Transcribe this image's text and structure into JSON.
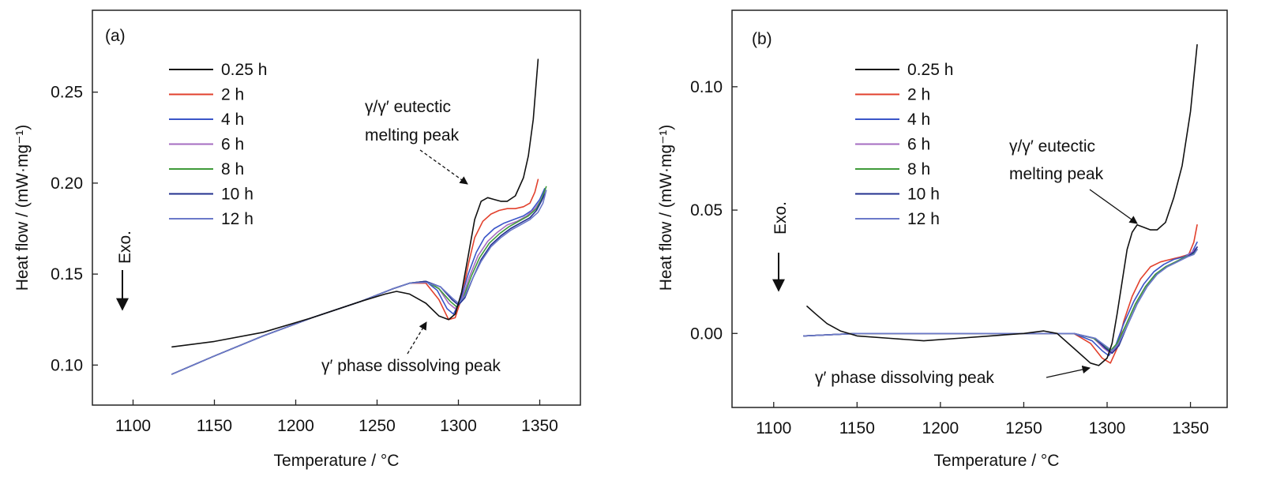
{
  "legend_entries": [
    "0.25 h",
    "2 h",
    "4 h",
    "6 h",
    "8 h",
    "10 h",
    "12 h"
  ],
  "colors": {
    "0.25 h": "#111111",
    "2 h": "#e2412d",
    "4 h": "#3a55c8",
    "6 h": "#a56cc1",
    "8 h": "#3f9a3a",
    "10 h": "#23308f",
    "12 h": "#6b79c9"
  },
  "chart_data": [
    {
      "type": "line",
      "panel_label": "(a)",
      "xlabel": "Temperature / °C",
      "ylabel": "Heat flow / (mW·mg⁻¹)",
      "xlim": [
        1075,
        1375
      ],
      "ylim": [
        0.078,
        0.295
      ],
      "xticks": [
        1100,
        1150,
        1200,
        1250,
        1300,
        1350
      ],
      "xtick_labels": [
        "1100",
        "1150",
        "1200",
        "1250",
        "1300",
        "1350"
      ],
      "yticks": [
        0.1,
        0.15,
        0.2,
        0.25
      ],
      "ytick_labels": [
        "0.10",
        "0.15",
        "0.20",
        "0.25"
      ],
      "legend_position": "upper-left",
      "exo_label": "Exo.",
      "annotations": [
        {
          "lines": [
            "γ/γ′ eutectic",
            "melting peak"
          ],
          "x": 1318,
          "y": 0.191
        },
        {
          "lines": [
            "γ′ phase dissolving peak"
          ],
          "x": 1294,
          "y": 0.126
        }
      ],
      "series": [
        {
          "name": "0.25 h",
          "x": [
            1124,
            1150,
            1180,
            1210,
            1240,
            1255,
            1262,
            1270,
            1280,
            1288,
            1294,
            1298,
            1302,
            1306,
            1310,
            1314,
            1318,
            1322,
            1326,
            1330,
            1335,
            1340,
            1343,
            1346,
            1349
          ],
          "y": [
            0.11,
            0.113,
            0.118,
            0.126,
            0.135,
            0.139,
            0.1405,
            0.139,
            0.134,
            0.127,
            0.125,
            0.128,
            0.14,
            0.16,
            0.18,
            0.19,
            0.192,
            0.191,
            0.19,
            0.19,
            0.193,
            0.203,
            0.215,
            0.235,
            0.268
          ]
        },
        {
          "name": "2 h",
          "x": [
            1124,
            1150,
            1180,
            1210,
            1240,
            1260,
            1270,
            1280,
            1288,
            1294,
            1298,
            1302,
            1306,
            1310,
            1315,
            1320,
            1325,
            1330,
            1335,
            1340,
            1344,
            1347,
            1349
          ],
          "y": [
            0.095,
            0.105,
            0.116,
            0.126,
            0.135,
            0.142,
            0.145,
            0.145,
            0.136,
            0.125,
            0.126,
            0.137,
            0.155,
            0.17,
            0.179,
            0.183,
            0.185,
            0.186,
            0.186,
            0.187,
            0.189,
            0.195,
            0.202
          ]
        },
        {
          "name": "4 h",
          "x": [
            1124,
            1150,
            1180,
            1210,
            1240,
            1260,
            1270,
            1280,
            1287,
            1293,
            1297,
            1301,
            1306,
            1311,
            1316,
            1322,
            1328,
            1334,
            1340,
            1345,
            1350,
            1353
          ],
          "y": [
            0.095,
            0.105,
            0.116,
            0.126,
            0.135,
            0.142,
            0.145,
            0.146,
            0.141,
            0.131,
            0.128,
            0.135,
            0.15,
            0.162,
            0.17,
            0.175,
            0.178,
            0.18,
            0.182,
            0.185,
            0.191,
            0.197
          ]
        },
        {
          "name": "6 h",
          "x": [
            1124,
            1150,
            1180,
            1210,
            1240,
            1260,
            1270,
            1280,
            1288,
            1294,
            1298,
            1302,
            1307,
            1312,
            1318,
            1324,
            1330,
            1336,
            1342,
            1347,
            1351,
            1353
          ],
          "y": [
            0.095,
            0.105,
            0.116,
            0.126,
            0.135,
            0.142,
            0.145,
            0.146,
            0.142,
            0.134,
            0.131,
            0.136,
            0.149,
            0.16,
            0.168,
            0.173,
            0.177,
            0.179,
            0.182,
            0.186,
            0.191,
            0.195
          ]
        },
        {
          "name": "8 h",
          "x": [
            1124,
            1150,
            1180,
            1210,
            1240,
            1260,
            1270,
            1280,
            1288,
            1295,
            1299,
            1303,
            1308,
            1313,
            1319,
            1325,
            1331,
            1337,
            1343,
            1348,
            1351,
            1354
          ],
          "y": [
            0.095,
            0.105,
            0.116,
            0.126,
            0.135,
            0.142,
            0.145,
            0.146,
            0.142,
            0.135,
            0.132,
            0.137,
            0.149,
            0.159,
            0.167,
            0.172,
            0.176,
            0.179,
            0.182,
            0.186,
            0.191,
            0.198
          ]
        },
        {
          "name": "10 h",
          "x": [
            1124,
            1150,
            1180,
            1210,
            1240,
            1260,
            1270,
            1280,
            1289,
            1296,
            1300,
            1304,
            1309,
            1314,
            1320,
            1326,
            1332,
            1338,
            1344,
            1348,
            1351,
            1353
          ],
          "y": [
            0.095,
            0.105,
            0.116,
            0.126,
            0.135,
            0.142,
            0.145,
            0.146,
            0.143,
            0.136,
            0.133,
            0.137,
            0.148,
            0.158,
            0.166,
            0.171,
            0.175,
            0.178,
            0.181,
            0.185,
            0.19,
            0.194
          ]
        },
        {
          "name": "12 h",
          "x": [
            1124,
            1150,
            1180,
            1210,
            1240,
            1260,
            1270,
            1280,
            1289,
            1296,
            1300,
            1304,
            1309,
            1314,
            1320,
            1326,
            1332,
            1338,
            1344,
            1349,
            1352,
            1354
          ],
          "y": [
            0.095,
            0.105,
            0.116,
            0.126,
            0.135,
            0.142,
            0.145,
            0.1455,
            0.143,
            0.137,
            0.134,
            0.138,
            0.148,
            0.157,
            0.165,
            0.17,
            0.174,
            0.177,
            0.18,
            0.184,
            0.189,
            0.196
          ]
        }
      ]
    },
    {
      "type": "line",
      "panel_label": "(b)",
      "xlabel": "Temperature / °C",
      "ylabel": "Heat flow / (mW·mg⁻¹)",
      "xlim": [
        1075,
        1372
      ],
      "ylim": [
        -0.03,
        0.131
      ],
      "xticks": [
        1100,
        1150,
        1200,
        1250,
        1300,
        1350
      ],
      "xtick_labels": [
        "1100",
        "1150",
        "1200",
        "1250",
        "1300",
        "1350"
      ],
      "yticks": [
        0.0,
        0.05,
        0.1
      ],
      "ytick_labels": [
        "0.00",
        "0.05",
        "0.10"
      ],
      "legend_position": "upper-left",
      "exo_label": "Exo.",
      "annotations": [
        {
          "lines": [
            "γ/γ′ eutectic",
            "melting peak"
          ],
          "x": 1320,
          "y": 0.043
        },
        {
          "lines": [
            "γ′ phase dissolving peak"
          ],
          "x": 1294,
          "y": -0.013
        }
      ],
      "series": [
        {
          "name": "0.25 h",
          "x": [
            1120,
            1125,
            1132,
            1140,
            1150,
            1170,
            1190,
            1210,
            1230,
            1250,
            1262,
            1270,
            1280,
            1290,
            1295,
            1300,
            1303,
            1306,
            1309,
            1312,
            1315,
            1318,
            1322,
            1326,
            1330,
            1335,
            1340,
            1345,
            1350,
            1354
          ],
          "y": [
            0.011,
            0.008,
            0.004,
            0.001,
            -0.001,
            -0.002,
            -0.003,
            -0.002,
            -0.001,
            0.0,
            0.001,
            0.0,
            -0.006,
            -0.012,
            -0.013,
            -0.01,
            -0.004,
            0.008,
            0.021,
            0.034,
            0.041,
            0.044,
            0.043,
            0.042,
            0.042,
            0.045,
            0.055,
            0.068,
            0.09,
            0.117
          ]
        },
        {
          "name": "2 h",
          "x": [
            1118,
            1150,
            1200,
            1250,
            1280,
            1290,
            1297,
            1302,
            1306,
            1310,
            1315,
            1320,
            1326,
            1332,
            1338,
            1344,
            1349,
            1352,
            1354
          ],
          "y": [
            -0.001,
            0.0,
            0.0,
            0.0,
            0.0,
            -0.004,
            -0.01,
            -0.012,
            -0.006,
            0.005,
            0.015,
            0.022,
            0.027,
            0.029,
            0.03,
            0.031,
            0.032,
            0.037,
            0.044
          ]
        },
        {
          "name": "4 h",
          "x": [
            1118,
            1150,
            1200,
            1250,
            1280,
            1291,
            1297,
            1301,
            1305,
            1310,
            1316,
            1322,
            1328,
            1334,
            1340,
            1346,
            1351,
            1354
          ],
          "y": [
            -0.001,
            0.0,
            0.0,
            0.0,
            0.0,
            -0.003,
            -0.007,
            -0.009,
            -0.005,
            0.004,
            0.013,
            0.02,
            0.025,
            0.028,
            0.03,
            0.031,
            0.033,
            0.037
          ]
        },
        {
          "name": "6 h",
          "x": [
            1118,
            1150,
            1200,
            1250,
            1280,
            1292,
            1298,
            1302,
            1306,
            1311,
            1317,
            1323,
            1329,
            1335,
            1341,
            1347,
            1351,
            1354
          ],
          "y": [
            -0.001,
            0.0,
            0.0,
            0.0,
            0.0,
            -0.002,
            -0.006,
            -0.008,
            -0.005,
            0.003,
            0.012,
            0.019,
            0.024,
            0.027,
            0.029,
            0.031,
            0.033,
            0.035
          ]
        },
        {
          "name": "8 h",
          "x": [
            1118,
            1150,
            1200,
            1250,
            1280,
            1292,
            1298,
            1302,
            1306,
            1311,
            1317,
            1323,
            1329,
            1335,
            1341,
            1347,
            1351,
            1354
          ],
          "y": [
            -0.001,
            0.0,
            0.0,
            0.0,
            0.0,
            -0.002,
            -0.005,
            -0.007,
            -0.004,
            0.003,
            0.012,
            0.019,
            0.024,
            0.027,
            0.029,
            0.031,
            0.032,
            0.034
          ]
        },
        {
          "name": "10 h",
          "x": [
            1118,
            1150,
            1200,
            1250,
            1280,
            1293,
            1299,
            1303,
            1307,
            1312,
            1318,
            1324,
            1330,
            1336,
            1342,
            1348,
            1352,
            1354
          ],
          "y": [
            -0.001,
            0.0,
            0.0,
            0.0,
            0.0,
            -0.002,
            -0.006,
            -0.008,
            -0.005,
            0.003,
            0.012,
            0.019,
            0.024,
            0.027,
            0.029,
            0.031,
            0.033,
            0.035
          ]
        },
        {
          "name": "12 h",
          "x": [
            1118,
            1150,
            1200,
            1250,
            1280,
            1293,
            1299,
            1303,
            1307,
            1312,
            1318,
            1324,
            1330,
            1336,
            1342,
            1348,
            1352,
            1354
          ],
          "y": [
            -0.001,
            0.0,
            0.0,
            0.0,
            0.0,
            -0.002,
            -0.005,
            -0.007,
            -0.004,
            0.003,
            0.012,
            0.019,
            0.024,
            0.027,
            0.029,
            0.031,
            0.032,
            0.034
          ]
        }
      ]
    }
  ]
}
